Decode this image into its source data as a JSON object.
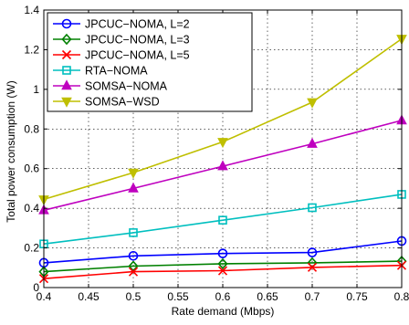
{
  "chart_data": {
    "type": "line",
    "xlabel": "Rate demand (Mbps)",
    "ylabel": "Total power consumption (W)",
    "xlim": [
      0.4,
      0.8
    ],
    "ylim": [
      0,
      1.4
    ],
    "xticks": [
      "0.4",
      "0.45",
      "0.5",
      "0.55",
      "0.6",
      "0.65",
      "0.7",
      "0.75",
      "0.8"
    ],
    "yticks": [
      "0",
      "0.2",
      "0.4",
      "0.6",
      "0.8",
      "1",
      "1.2",
      "1.4"
    ],
    "grid": true,
    "legend_position": "top-left",
    "x": [
      0.4,
      0.5,
      0.6,
      0.7,
      0.8
    ],
    "series": [
      {
        "name": "JPCUC−NOMA, L=2",
        "color": "#0000ff",
        "marker": "circle",
        "values": [
          0.125,
          0.16,
          0.172,
          0.177,
          0.235
        ]
      },
      {
        "name": "JPCUC−NOMA, L=3",
        "color": "#008000",
        "marker": "diamond",
        "values": [
          0.08,
          0.108,
          0.12,
          0.125,
          0.133
        ]
      },
      {
        "name": "JPCUC−NOMA, L=5",
        "color": "#ff0000",
        "marker": "x",
        "values": [
          0.045,
          0.08,
          0.085,
          0.102,
          0.112
        ]
      },
      {
        "name": "RTA−NOMA",
        "color": "#00bfbf",
        "marker": "square",
        "values": [
          0.22,
          0.277,
          0.34,
          0.403,
          0.47
        ]
      },
      {
        "name": "SOMSA−NOMA",
        "color": "#bf00bf",
        "marker": "triangle-up",
        "values": [
          0.39,
          0.5,
          0.612,
          0.725,
          0.843
        ]
      },
      {
        "name": "SOMSA−WSD",
        "color": "#bfbf00",
        "marker": "triangle-down",
        "values": [
          0.445,
          0.58,
          0.735,
          0.935,
          1.255
        ]
      }
    ]
  }
}
